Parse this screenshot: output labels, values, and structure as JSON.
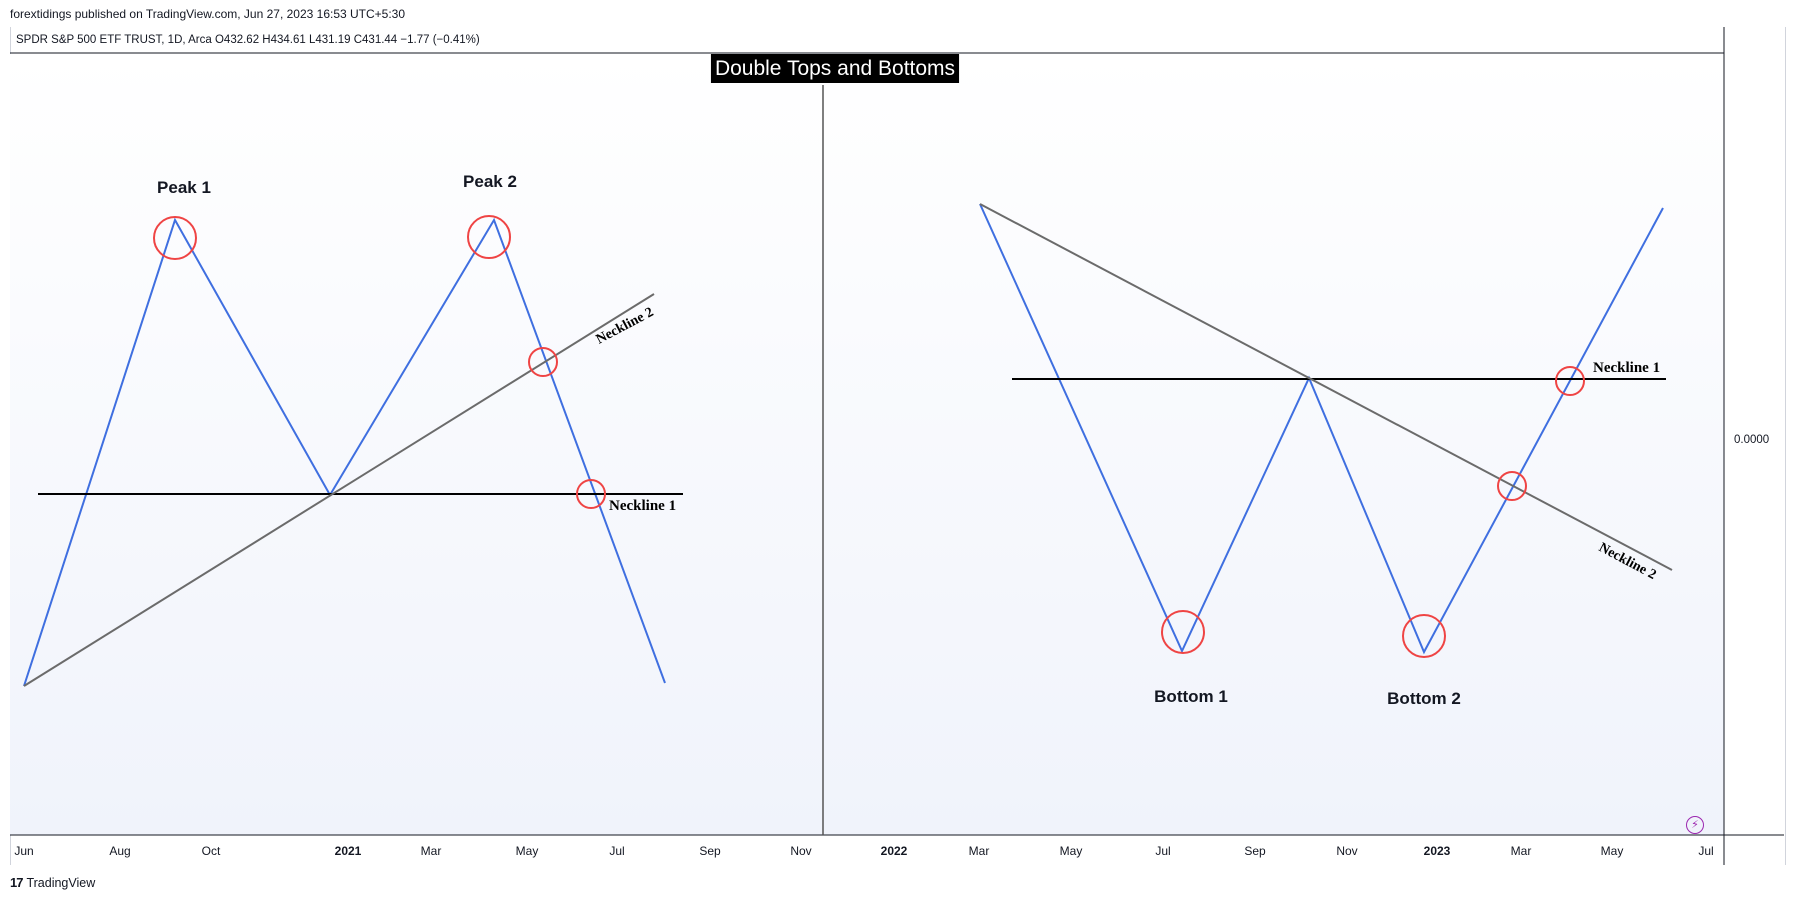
{
  "header": {
    "publish_line": "forextidings published on TradingView.com, Jun 27, 2023 16:53 UTC+5:30",
    "symbol_line": "SPDR S&P 500 ETF TRUST, 1D, Arca  O432.62  H434.61  L431.19  C431.44  −1.77 (−0.41%)"
  },
  "chart_data": {
    "type": "line",
    "title": "Double Tops and Bottoms",
    "price_scale_label": "0.0000",
    "x_ticks": [
      {
        "label": "Jun",
        "bold": false
      },
      {
        "label": "Aug",
        "bold": false
      },
      {
        "label": "Oct",
        "bold": false
      },
      {
        "label": "2021",
        "bold": true
      },
      {
        "label": "Mar",
        "bold": false
      },
      {
        "label": "May",
        "bold": false
      },
      {
        "label": "Jul",
        "bold": false
      },
      {
        "label": "Sep",
        "bold": false
      },
      {
        "label": "Nov",
        "bold": false
      },
      {
        "label": "2022",
        "bold": true
      },
      {
        "label": "Mar",
        "bold": false
      },
      {
        "label": "May",
        "bold": false
      },
      {
        "label": "Jul",
        "bold": false
      },
      {
        "label": "Sep",
        "bold": false
      },
      {
        "label": "Nov",
        "bold": false
      },
      {
        "label": "2023",
        "bold": true
      },
      {
        "label": "Mar",
        "bold": false
      },
      {
        "label": "May",
        "bold": false
      },
      {
        "label": "Jul",
        "bold": false
      }
    ],
    "panels": [
      {
        "name": "double-top",
        "price_path_color": "#3f6fe0",
        "labels": {
          "extreme_1": "Peak 1",
          "extreme_2": "Peak 2",
          "neckline_1": "Neckline 1",
          "neckline_2": "Neckline 2"
        }
      },
      {
        "name": "double-bottom",
        "price_path_color": "#3f6fe0",
        "labels": {
          "extreme_1": "Bottom 1",
          "extreme_2": "Bottom 2",
          "neckline_1": "Neckline 1",
          "neckline_2": "Neckline 2"
        }
      }
    ],
    "colors": {
      "price_path": "#3f6fe0",
      "neckline_1": "#000000",
      "neckline_2": "#6b6b6b",
      "marker_circle": "#ef4444",
      "title_bg": "#000000",
      "title_fg": "#ffffff",
      "divider": "#555555"
    }
  },
  "footer": {
    "logo_mark": "17",
    "logo_text": "TradingView"
  },
  "icons": {
    "lightning": "lightning-icon"
  }
}
